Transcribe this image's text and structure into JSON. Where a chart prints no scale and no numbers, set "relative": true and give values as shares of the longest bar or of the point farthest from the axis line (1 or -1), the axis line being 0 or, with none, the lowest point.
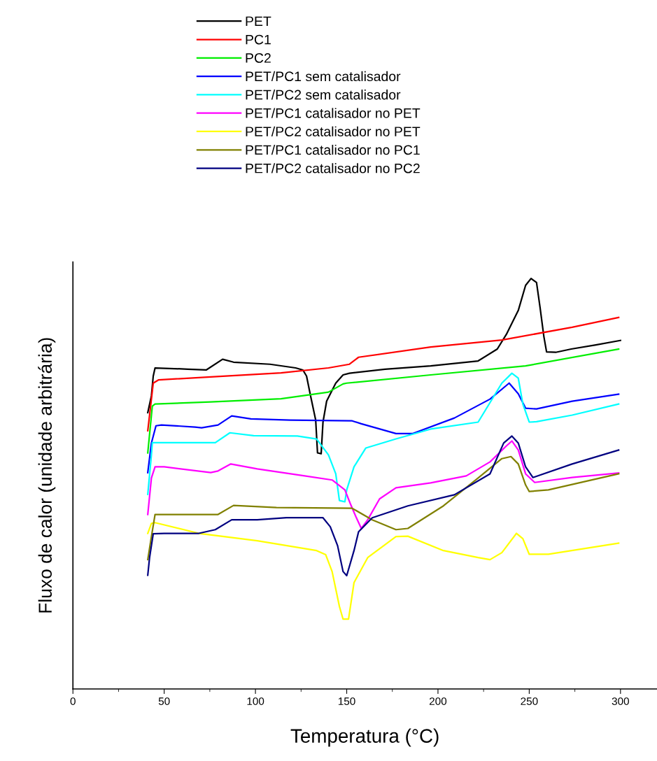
{
  "chart_data": {
    "type": "line",
    "relative": true,
    "xlabel": "Temperatura (°C)",
    "ylabel": "Fluxo de calor (unidade arbitrária)",
    "xlim": [
      0,
      320
    ],
    "xticks": [
      0,
      50,
      100,
      150,
      200,
      250,
      300
    ],
    "grid": false,
    "legend": "top",
    "marker": "none",
    "line_style": "solid",
    "series": [
      {
        "name": "PET",
        "color": "#000000",
        "x": [
          41,
          43,
          44,
          45,
          63,
          73,
          82,
          88,
          108,
          122,
          126,
          128,
          130,
          133,
          134,
          136,
          137,
          139,
          144,
          148,
          151.5,
          171,
          196,
          222,
          232.5,
          237.5,
          244,
          248,
          251,
          254,
          256,
          258,
          259.5,
          264.5,
          273,
          286.5,
          300
        ],
        "values": [
          0.673,
          0.714,
          0.762,
          0.782,
          0.779,
          0.777,
          0.803,
          0.796,
          0.791,
          0.782,
          0.777,
          0.762,
          0.718,
          0.655,
          0.575,
          0.573,
          0.65,
          0.701,
          0.745,
          0.765,
          0.769,
          0.779,
          0.787,
          0.799,
          0.828,
          0.864,
          0.922,
          0.983,
          1.0,
          0.99,
          0.927,
          0.859,
          0.821,
          0.82,
          0.828,
          0.838,
          0.849
        ]
      },
      {
        "name": "PC1",
        "color": "#ff0000",
        "x": [
          41,
          43,
          44,
          47,
          75.5,
          114,
          140,
          151.5,
          156.5,
          196,
          235,
          273.5,
          299
        ],
        "values": [
          0.629,
          0.706,
          0.745,
          0.753,
          0.76,
          0.77,
          0.782,
          0.791,
          0.808,
          0.833,
          0.85,
          0.881,
          0.905
        ]
      },
      {
        "name": "PC2",
        "color": "#00ee00",
        "x": [
          41,
          43.5,
          45,
          75.5,
          114,
          140,
          148,
          150,
          196,
          248,
          299
        ],
        "values": [
          0.575,
          0.689,
          0.694,
          0.699,
          0.707,
          0.723,
          0.743,
          0.745,
          0.765,
          0.787,
          0.828
        ]
      },
      {
        "name": "PET/PC1 sem catalisador",
        "color": "#0000ff",
        "x": [
          41,
          43,
          45.5,
          48.5,
          67,
          70.5,
          79.5,
          87,
          97.5,
          119,
          153,
          158,
          177,
          186,
          209,
          228.5,
          239,
          244,
          248,
          254,
          273.5,
          299
        ],
        "values": [
          0.527,
          0.599,
          0.641,
          0.643,
          0.638,
          0.636,
          0.643,
          0.665,
          0.658,
          0.655,
          0.653,
          0.646,
          0.622,
          0.622,
          0.66,
          0.706,
          0.745,
          0.719,
          0.684,
          0.682,
          0.701,
          0.718
        ]
      },
      {
        "name": "PET/PC2 sem catalisador",
        "color": "#00ffff",
        "x": [
          41,
          43,
          43.5,
          50,
          78,
          86,
          99,
          123,
          133.5,
          140,
          144,
          146,
          149,
          150,
          154,
          160.5,
          177,
          196,
          222,
          235,
          240.5,
          244,
          246.5,
          250,
          254,
          273.5,
          299
        ],
        "values": [
          0.474,
          0.57,
          0.6,
          0.6,
          0.6,
          0.624,
          0.617,
          0.616,
          0.609,
          0.57,
          0.524,
          0.459,
          0.456,
          0.485,
          0.541,
          0.587,
          0.609,
          0.633,
          0.65,
          0.745,
          0.769,
          0.757,
          0.694,
          0.65,
          0.651,
          0.667,
          0.694
        ]
      },
      {
        "name": "PET/PC1 catalisador no PET",
        "color": "#ff00ff",
        "x": [
          41,
          43,
          45,
          50,
          75.5,
          79.5,
          86.5,
          101,
          127,
          142,
          149,
          152,
          155,
          158,
          161.5,
          168,
          177,
          196,
          215.5,
          228.5,
          237.5,
          240.5,
          244,
          248,
          253,
          273.5,
          299
        ],
        "values": [
          0.425,
          0.514,
          0.541,
          0.541,
          0.527,
          0.531,
          0.548,
          0.536,
          0.519,
          0.509,
          0.485,
          0.451,
          0.42,
          0.391,
          0.412,
          0.463,
          0.49,
          0.502,
          0.519,
          0.553,
          0.592,
          0.604,
          0.582,
          0.524,
          0.503,
          0.515,
          0.526
        ]
      },
      {
        "name": "PET/PC2 catalisador no PET",
        "color": "#ffff00",
        "x": [
          41,
          43,
          45,
          69,
          101,
          133.5,
          138.5,
          142,
          146,
          148,
          151,
          154,
          161.5,
          177,
          183.5,
          203,
          222,
          228.5,
          235,
          243,
          246.5,
          250,
          260.5,
          299
        ],
        "values": [
          0.379,
          0.403,
          0.405,
          0.379,
          0.361,
          0.337,
          0.327,
          0.286,
          0.201,
          0.17,
          0.17,
          0.259,
          0.32,
          0.371,
          0.372,
          0.337,
          0.32,
          0.315,
          0.332,
          0.379,
          0.366,
          0.328,
          0.328,
          0.355
        ]
      },
      {
        "name": "PET/PC1 catalisador no PC1",
        "color": "#808000",
        "x": [
          41,
          43,
          45,
          79.5,
          88,
          111.5,
          153,
          164,
          177,
          183.5,
          203,
          222,
          235,
          240,
          244,
          248,
          250,
          260.5,
          299
        ],
        "values": [
          0.315,
          0.371,
          0.425,
          0.425,
          0.447,
          0.442,
          0.44,
          0.412,
          0.388,
          0.391,
          0.446,
          0.514,
          0.561,
          0.566,
          0.548,
          0.497,
          0.481,
          0.485,
          0.524
        ]
      },
      {
        "name": "PET/PC2 catalisador no PC2",
        "color": "#000080",
        "x": [
          41,
          42,
          44,
          50,
          69,
          78,
          87,
          101,
          117,
          137,
          141,
          145,
          148,
          150,
          154,
          156.5,
          164,
          183.5,
          209,
          228.5,
          236,
          240.5,
          244,
          248,
          252,
          273.5,
          299
        ],
        "values": [
          0.277,
          0.32,
          0.378,
          0.379,
          0.379,
          0.388,
          0.412,
          0.412,
          0.417,
          0.417,
          0.395,
          0.349,
          0.286,
          0.276,
          0.337,
          0.383,
          0.417,
          0.446,
          0.473,
          0.524,
          0.599,
          0.616,
          0.599,
          0.541,
          0.515,
          0.548,
          0.582
        ]
      }
    ]
  }
}
